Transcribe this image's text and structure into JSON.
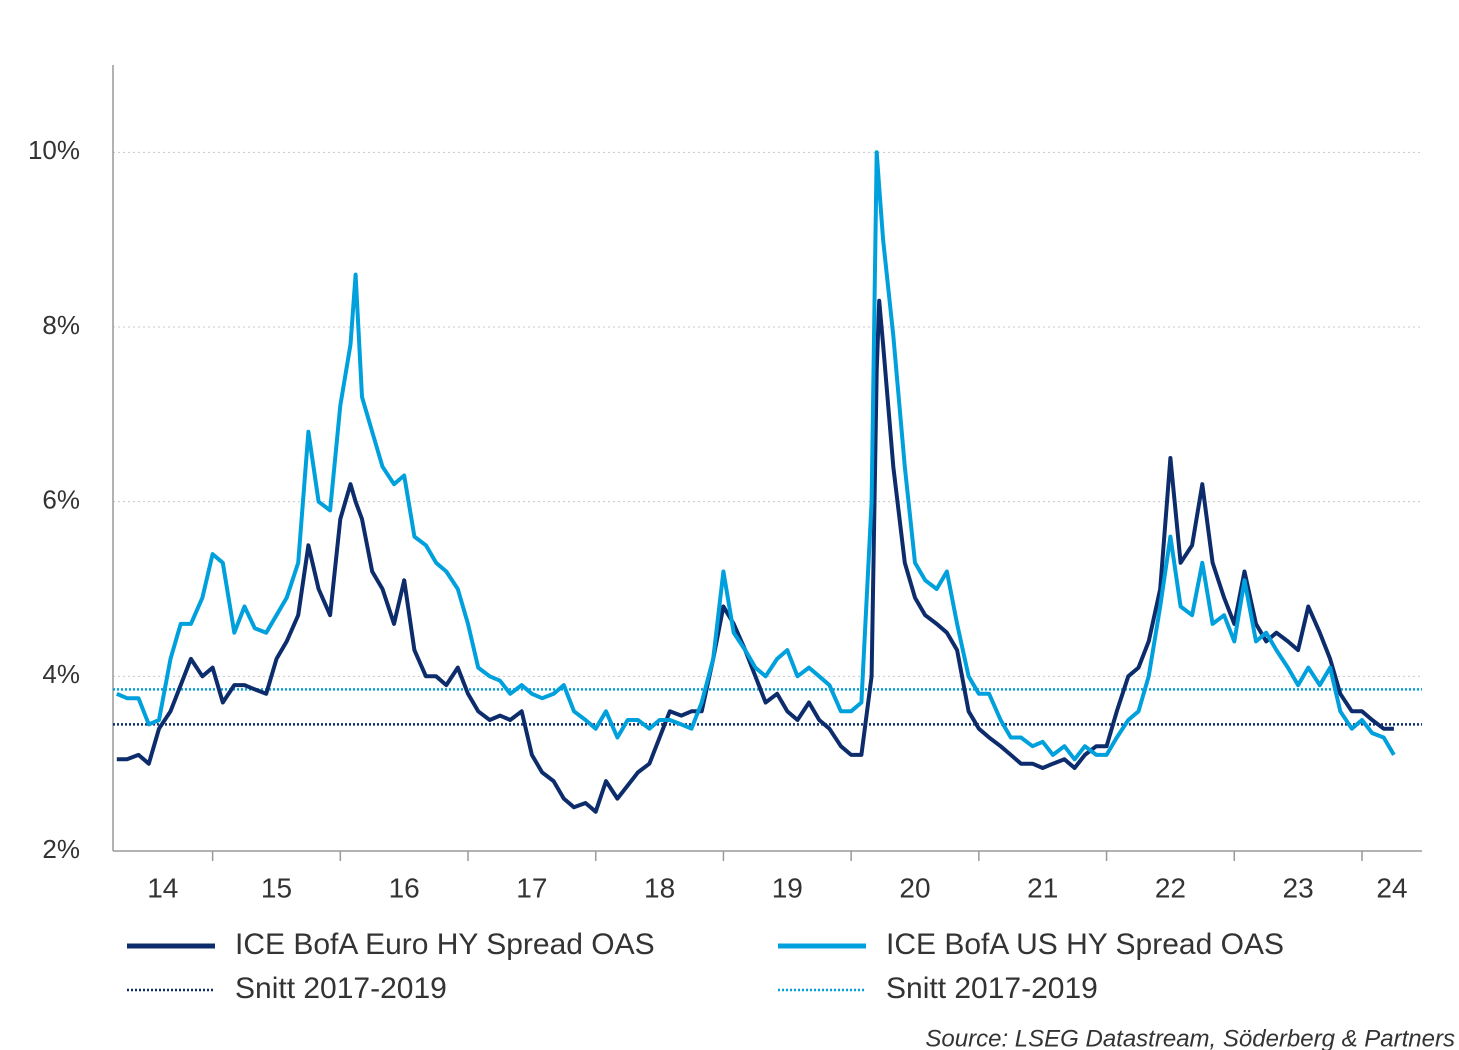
{
  "chart_data": {
    "type": "line",
    "source": "Source: LSEG Datastream, Söderberg & Partners",
    "xlim": [
      14.22,
      24.47
    ],
    "xticks": [
      15,
      16,
      17,
      18,
      19,
      20,
      21,
      22,
      23,
      24
    ],
    "xlabels": [
      "14",
      "15",
      "16",
      "17",
      "18",
      "19",
      "20",
      "21",
      "22",
      "23",
      "24"
    ],
    "ylim": [
      2,
      11
    ],
    "yticks": [
      {
        "value": 2,
        "label": "2%"
      },
      {
        "value": 4,
        "label": "4%"
      },
      {
        "value": 6,
        "label": "6%"
      },
      {
        "value": 8,
        "label": "8%"
      },
      {
        "value": 10,
        "label": "10%"
      }
    ],
    "grid": true,
    "x": [
      14.25,
      14.33,
      14.42,
      14.5,
      14.58,
      14.67,
      14.75,
      14.83,
      14.92,
      15,
      15.08,
      15.17,
      15.25,
      15.33,
      15.42,
      15.5,
      15.58,
      15.67,
      15.75,
      15.83,
      15.92,
      16,
      16.08,
      16.12,
      16.17,
      16.25,
      16.33,
      16.42,
      16.5,
      16.58,
      16.67,
      16.75,
      16.83,
      16.92,
      17,
      17.08,
      17.17,
      17.25,
      17.33,
      17.42,
      17.5,
      17.58,
      17.67,
      17.75,
      17.83,
      17.92,
      18,
      18.08,
      18.17,
      18.25,
      18.33,
      18.42,
      18.5,
      18.58,
      18.67,
      18.75,
      18.83,
      18.92,
      19,
      19.08,
      19.17,
      19.25,
      19.33,
      19.42,
      19.5,
      19.58,
      19.67,
      19.75,
      19.83,
      19.92,
      20,
      20.08,
      20.16,
      20.2,
      20.22,
      20.25,
      20.33,
      20.42,
      20.5,
      20.58,
      20.67,
      20.75,
      20.83,
      20.92,
      21,
      21.08,
      21.17,
      21.25,
      21.33,
      21.42,
      21.5,
      21.58,
      21.67,
      21.75,
      21.83,
      21.92,
      22,
      22.08,
      22.17,
      22.25,
      22.33,
      22.42,
      22.5,
      22.58,
      22.67,
      22.75,
      22.83,
      22.92,
      23,
      23.08,
      23.17,
      23.25,
      23.33,
      23.42,
      23.5,
      23.58,
      23.67,
      23.75,
      23.83,
      23.92,
      24,
      24.08,
      24.17,
      24.25
    ],
    "series": [
      {
        "name": "ICE BofA Euro HY Spread OAS",
        "color": "#0d2c6c",
        "values": [
          3.05,
          3.05,
          3.1,
          3.0,
          3.4,
          3.6,
          3.9,
          4.2,
          4.0,
          4.1,
          3.7,
          3.9,
          3.9,
          3.85,
          3.8,
          4.2,
          4.4,
          4.7,
          5.5,
          5.0,
          4.7,
          5.8,
          6.2,
          6.0,
          5.8,
          5.2,
          5.0,
          4.6,
          5.1,
          4.3,
          4.0,
          4.0,
          3.9,
          4.1,
          3.8,
          3.6,
          3.5,
          3.55,
          3.5,
          3.6,
          3.1,
          2.9,
          2.8,
          2.6,
          2.5,
          2.55,
          2.45,
          2.8,
          2.6,
          2.75,
          2.9,
          3.0,
          3.3,
          3.6,
          3.55,
          3.6,
          3.6,
          4.2,
          4.8,
          4.6,
          4.3,
          4.0,
          3.7,
          3.8,
          3.6,
          3.5,
          3.7,
          3.5,
          3.4,
          3.2,
          3.1,
          3.1,
          4.0,
          7.5,
          8.3,
          7.8,
          6.4,
          5.3,
          4.9,
          4.7,
          4.6,
          4.5,
          4.3,
          3.6,
          3.4,
          3.3,
          3.2,
          3.1,
          3.0,
          3.0,
          2.95,
          3.0,
          3.05,
          2.95,
          3.1,
          3.2,
          3.2,
          3.6,
          4.0,
          4.1,
          4.4,
          5.0,
          6.5,
          5.3,
          5.5,
          6.2,
          5.3,
          4.9,
          4.6,
          5.2,
          4.6,
          4.4,
          4.5,
          4.4,
          4.3,
          4.8,
          4.5,
          4.2,
          3.8,
          3.6,
          3.6,
          3.5,
          3.4,
          3.4
        ]
      },
      {
        "name": "ICE BofA US HY Spread OAS",
        "color": "#00a0dc",
        "values": [
          3.8,
          3.75,
          3.75,
          3.45,
          3.5,
          4.2,
          4.6,
          4.6,
          4.9,
          5.4,
          5.3,
          4.5,
          4.8,
          4.55,
          4.5,
          4.7,
          4.9,
          5.3,
          6.8,
          6.0,
          5.9,
          7.1,
          7.8,
          8.6,
          7.2,
          6.8,
          6.4,
          6.2,
          6.3,
          5.6,
          5.5,
          5.3,
          5.2,
          5.0,
          4.6,
          4.1,
          4.0,
          3.95,
          3.8,
          3.9,
          3.8,
          3.75,
          3.8,
          3.9,
          3.6,
          3.5,
          3.4,
          3.6,
          3.3,
          3.5,
          3.5,
          3.4,
          3.5,
          3.5,
          3.45,
          3.4,
          3.7,
          4.2,
          5.2,
          4.5,
          4.3,
          4.1,
          4.0,
          4.2,
          4.3,
          4.0,
          4.1,
          4.0,
          3.9,
          3.6,
          3.6,
          3.7,
          6.0,
          10.0,
          9.6,
          9.0,
          7.9,
          6.4,
          5.3,
          5.1,
          5.0,
          5.2,
          4.6,
          4.0,
          3.8,
          3.8,
          3.5,
          3.3,
          3.3,
          3.2,
          3.25,
          3.1,
          3.2,
          3.05,
          3.2,
          3.1,
          3.1,
          3.3,
          3.5,
          3.6,
          4.0,
          4.8,
          5.6,
          4.8,
          4.7,
          5.3,
          4.6,
          4.7,
          4.4,
          5.1,
          4.4,
          4.5,
          4.3,
          4.1,
          3.9,
          4.1,
          3.9,
          4.1,
          3.6,
          3.4,
          3.5,
          3.35,
          3.3,
          3.1
        ]
      }
    ],
    "reference_lines": [
      {
        "name": "Snitt 2017-2019",
        "value": 3.45,
        "color": "#0d2c6c"
      },
      {
        "name": "Snitt 2017-2019",
        "value": 3.85,
        "color": "#00a0dc"
      }
    ]
  }
}
